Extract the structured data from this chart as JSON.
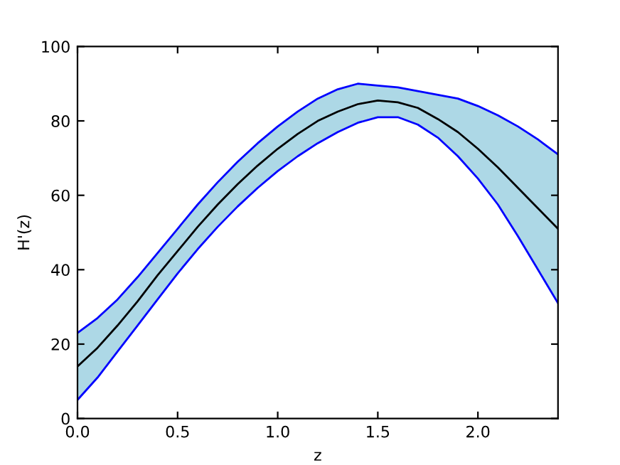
{
  "chart_data": {
    "type": "line",
    "xlabel": "z",
    "ylabel": "H'(z)",
    "xlim": [
      0,
      2.4
    ],
    "ylim": [
      0,
      100
    ],
    "xticks": [
      {
        "value": 0,
        "label": "0.0"
      },
      {
        "value": 0.5,
        "label": "0.5"
      },
      {
        "value": 1,
        "label": "1.0"
      },
      {
        "value": 1.5,
        "label": "1.5"
      },
      {
        "value": 2,
        "label": "2.0"
      }
    ],
    "yticks": [
      0,
      20,
      40,
      60,
      80,
      100
    ],
    "grid": false,
    "legend": false,
    "marker": "none",
    "line_style": "solid",
    "series": [
      {
        "color": "#000000",
        "x": [
          0,
          0.1,
          0.2,
          0.3,
          0.4,
          0.5,
          0.6,
          0.7,
          0.8,
          0.9,
          1.0,
          1.1,
          1.2,
          1.3,
          1.4,
          1.5,
          1.6,
          1.7,
          1.8,
          1.9,
          2.0,
          2.1,
          2.2,
          2.3,
          2.4
        ],
        "values": [
          14,
          19,
          25,
          31.5,
          38.5,
          45,
          51.5,
          57.5,
          63,
          68,
          72.5,
          76.5,
          80,
          82.5,
          84.5,
          85.5,
          85,
          83.5,
          80.5,
          77,
          72.5,
          67.5,
          62,
          56.5,
          51
        ],
        "upper": [
          23,
          27,
          32,
          38,
          44.5,
          51,
          57.5,
          63.5,
          69,
          74,
          78.5,
          82.5,
          86,
          88.5,
          90,
          89.5,
          89,
          88,
          87,
          86,
          84,
          81.5,
          78.5,
          75,
          71
        ],
        "lower": [
          5,
          11,
          18,
          25,
          32,
          39,
          45.5,
          51.5,
          57,
          62,
          66.5,
          70.5,
          74,
          77,
          79.5,
          81,
          81,
          79,
          75.5,
          70.5,
          64.5,
          57.5,
          49,
          40,
          31
        ]
      },
      {
        "color": "#0000ff",
        "x": [
          0,
          0.1,
          0.2,
          0.3,
          0.4,
          0.5,
          0.6,
          0.7,
          0.8,
          0.9,
          1.0,
          1.1,
          1.2,
          1.3,
          1.4,
          1.5,
          1.6,
          1.7,
          1.8,
          1.9,
          2.0,
          2.1,
          2.2,
          2.3,
          2.4
        ],
        "values": [
          23,
          27,
          32,
          38,
          44.5,
          51,
          57.5,
          63.5,
          69,
          74,
          78.5,
          82.5,
          86,
          88.5,
          90,
          89.5,
          89,
          88,
          87,
          86,
          84,
          81.5,
          78.5,
          75,
          71
        ]
      },
      {
        "color": "#0000ff",
        "x": [
          0,
          0.1,
          0.2,
          0.3,
          0.4,
          0.5,
          0.6,
          0.7,
          0.8,
          0.9,
          1.0,
          1.1,
          1.2,
          1.3,
          1.4,
          1.5,
          1.6,
          1.7,
          1.8,
          1.9,
          2.0,
          2.1,
          2.2,
          2.3,
          2.4
        ],
        "values": [
          5,
          11,
          18,
          25,
          32,
          39,
          45.5,
          51.5,
          57,
          62,
          66.5,
          70.5,
          74,
          77,
          79.5,
          81,
          81,
          79,
          75.5,
          70.5,
          64.5,
          57.5,
          49,
          40,
          31
        ]
      }
    ]
  }
}
